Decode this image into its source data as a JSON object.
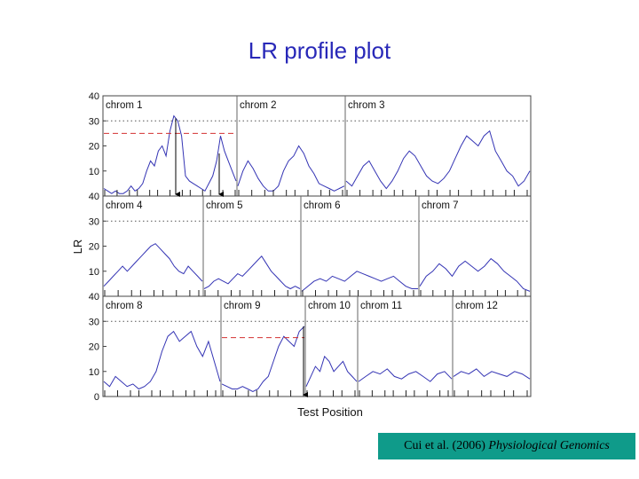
{
  "chart_data": {
    "type": "line",
    "title": "LR profile plot",
    "xlabel": "Test Position",
    "ylabel": "LR",
    "ylim": [
      0,
      40
    ],
    "yticks_row": [
      "40",
      "30",
      "20",
      "10"
    ],
    "yticks_bottom": [
      "40",
      "30",
      "20",
      "10",
      "0"
    ],
    "grid": false,
    "threshold_dotted": 30,
    "line_color": "#3434b4",
    "rows": [
      {
        "chromosomes": [
          {
            "label": "chrom 1",
            "profile": [
              3,
              2,
              1,
              2,
              1,
              1,
              2,
              4,
              2,
              3,
              5,
              10,
              14,
              12,
              18,
              20,
              16,
              26,
              32,
              30,
              24,
              8,
              6,
              5,
              4,
              3,
              2,
              5,
              8,
              14,
              24,
              18,
              14,
              10,
              6
            ]
          },
          {
            "label": "chrom 2",
            "profile": [
              4,
              10,
              14,
              11,
              7,
              4,
              2,
              2,
              4,
              10,
              14,
              16,
              20,
              17,
              12,
              9,
              5,
              4,
              3,
              2,
              3,
              4
            ]
          },
          {
            "label": "chrom 3",
            "profile": [
              6,
              4,
              8,
              12,
              14,
              10,
              6,
              3,
              6,
              10,
              15,
              18,
              16,
              12,
              8,
              6,
              5,
              7,
              10,
              15,
              20,
              24,
              22,
              20,
              24,
              26,
              18,
              14,
              10,
              8,
              4,
              6,
              10
            ]
          }
        ],
        "peak_markers": [
          {
            "chrom": "chrom 1",
            "lr": 25,
            "from": "chrom 1"
          },
          {
            "chrom": "chrom 1",
            "lr": 25,
            "from": "chrom 1"
          }
        ]
      },
      {
        "chromosomes": [
          {
            "label": "chrom 4",
            "profile": [
              4,
              6,
              8,
              10,
              12,
              10,
              12,
              14,
              16,
              18,
              20,
              21,
              19,
              17,
              15,
              12,
              10,
              9,
              12,
              10,
              8,
              6
            ]
          },
          {
            "label": "chrom 5",
            "profile": [
              3,
              4,
              6,
              7,
              6,
              5,
              7,
              9,
              8,
              10,
              12,
              14,
              16,
              13,
              10,
              8,
              6,
              4,
              3,
              4,
              3
            ]
          },
          {
            "label": "chrom 6",
            "profile": [
              2,
              4,
              6,
              7,
              6,
              8,
              7,
              6,
              8,
              10,
              9,
              8,
              7,
              6,
              7,
              8,
              6,
              4,
              3,
              3
            ]
          },
          {
            "label": "chrom 7",
            "profile": [
              4,
              8,
              10,
              13,
              11,
              8,
              12,
              14,
              12,
              10,
              12,
              15,
              13,
              10,
              8,
              6,
              3,
              2
            ]
          }
        ],
        "peak_markers": []
      },
      {
        "chromosomes": [
          {
            "label": "chrom 8",
            "profile": [
              6,
              4,
              8,
              6,
              4,
              5,
              3,
              4,
              6,
              10,
              18,
              24,
              26,
              22,
              24,
              26,
              20,
              16,
              22,
              14,
              6
            ]
          },
          {
            "label": "chrom 9",
            "profile": [
              5,
              4,
              3,
              3,
              4,
              3,
              2,
              3,
              6,
              8,
              14,
              20,
              24,
              22,
              20,
              26,
              28
            ]
          },
          {
            "label": "chrom 10",
            "profile": [
              4,
              8,
              12,
              10,
              16,
              14,
              10,
              12,
              14,
              10,
              8,
              6
            ]
          },
          {
            "label": "chrom 11",
            "profile": [
              6,
              8,
              10,
              9,
              11,
              8,
              7,
              9,
              10,
              8,
              6,
              9,
              10,
              7
            ]
          },
          {
            "label": "chrom 12",
            "profile": [
              8,
              10,
              9,
              11,
              8,
              10,
              9,
              8,
              10,
              9,
              7
            ]
          }
        ],
        "peak_markers": [
          {
            "chrom": "chrom 9",
            "lr": 23.5,
            "from": "chrom 9"
          }
        ]
      }
    ]
  },
  "citation": {
    "authors": "Cui et al. (2006)",
    "journal": "Physiological Genomics"
  }
}
